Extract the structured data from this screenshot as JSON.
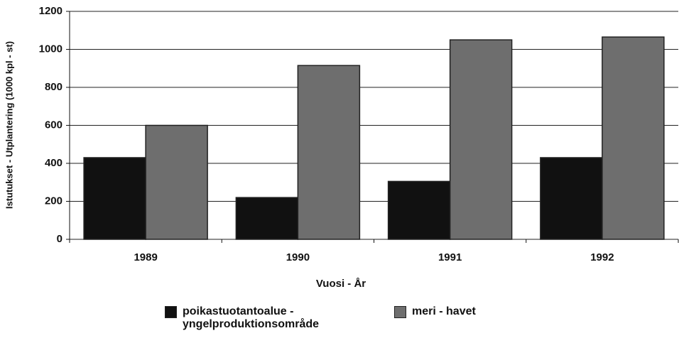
{
  "chart_data": {
    "type": "bar",
    "ylabel": "Istutukset - Utplantering (1000 kpl - st)",
    "xlabel": "Vuosi - År",
    "categories": [
      "1989",
      "1990",
      "1991",
      "1992"
    ],
    "series": [
      {
        "name": "poikastuotantoalue - yngelproduktionsområde",
        "color": "#111111",
        "values": [
          430,
          220,
          305,
          430
        ]
      },
      {
        "name": "meri - havet",
        "color": "#6e6e6e",
        "values": [
          600,
          915,
          1050,
          1065
        ]
      }
    ],
    "ylim": [
      0,
      1200
    ],
    "yticks": [
      0,
      200,
      400,
      600,
      800,
      1000,
      1200
    ],
    "grid": true
  }
}
